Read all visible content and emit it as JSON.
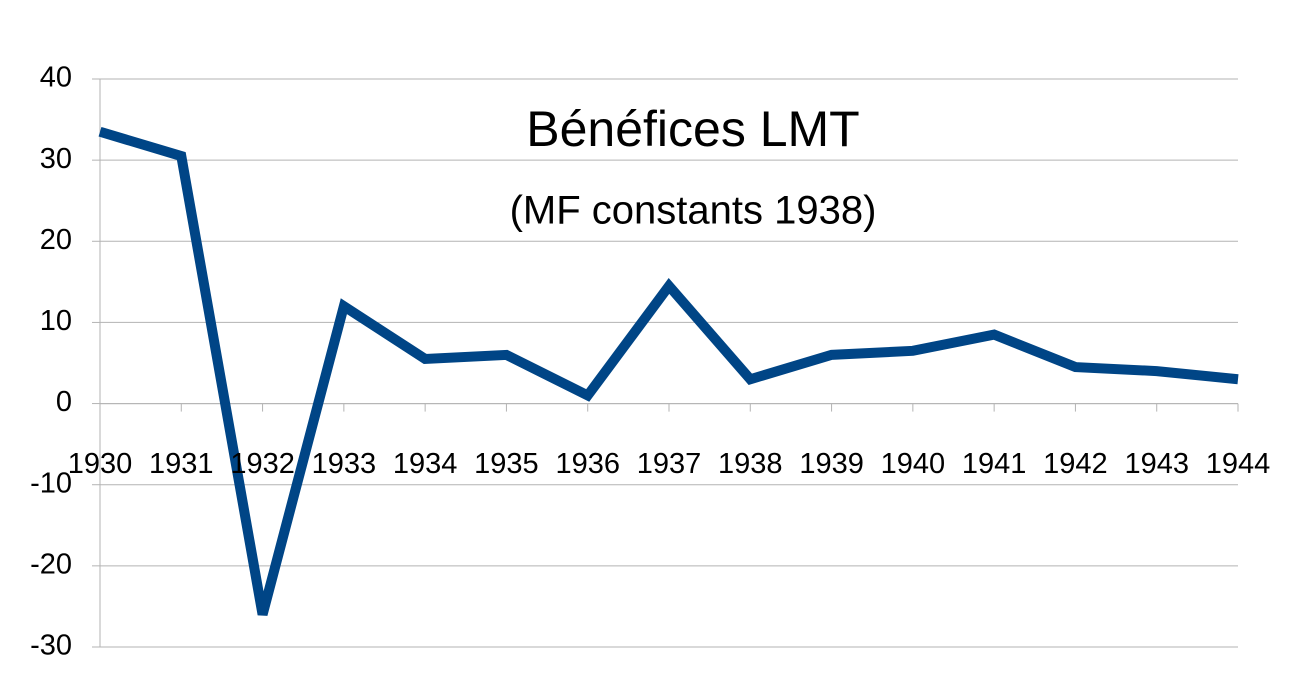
{
  "chart_data": {
    "type": "line",
    "title": "Bénéfices LMT",
    "subtitle": "(MF constants 1938)",
    "x": [
      1930,
      1931,
      1932,
      1933,
      1934,
      1935,
      1936,
      1937,
      1938,
      1939,
      1940,
      1941,
      1942,
      1943,
      1944
    ],
    "series": [
      {
        "name": "Bénéfices LMT",
        "color": "#004586",
        "values": [
          33.5,
          30.5,
          -26,
          12,
          5.5,
          6,
          1,
          14.5,
          3,
          6,
          6.5,
          8.5,
          4.5,
          4,
          3
        ]
      }
    ],
    "xlim": [
      1930,
      1944
    ],
    "xticks": [
      1930,
      1931,
      1932,
      1933,
      1934,
      1935,
      1936,
      1937,
      1938,
      1939,
      1940,
      1941,
      1942,
      1943,
      1944
    ],
    "ylim": [
      -30,
      40
    ],
    "yticks": [
      -30,
      -20,
      -10,
      0,
      10,
      20,
      30,
      40
    ],
    "grid": true
  }
}
